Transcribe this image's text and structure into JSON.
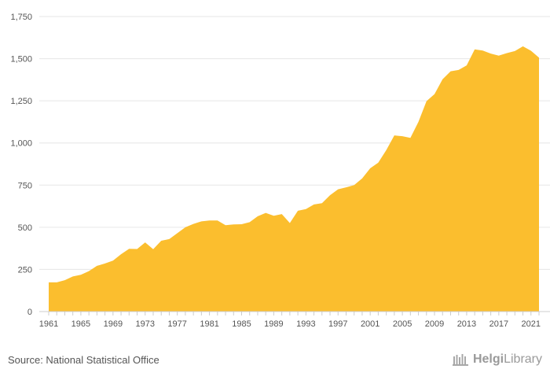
{
  "source_text": "Source: National Statistical Office",
  "logo": {
    "part1": "Helgi",
    "part2": "Library",
    "icon": "helgi-library-logo-icon"
  },
  "colors": {
    "area": "#FBBE2E",
    "grid": "#e6e6e6",
    "axis": "#cccccc",
    "text": "#555555"
  },
  "chart_data": {
    "type": "area",
    "title": "",
    "xlabel": "",
    "ylabel": "",
    "grid": true,
    "legend": "none",
    "ylim": [
      0,
      1750
    ],
    "y_ticks": [
      0,
      250,
      500,
      750,
      1000,
      1250,
      1500,
      1750
    ],
    "y_tick_labels": [
      "0",
      "250",
      "500",
      "750",
      "1,000",
      "1,250",
      "1,500",
      "1,750"
    ],
    "x_tick_labels": [
      "1961",
      "1965",
      "1969",
      "1973",
      "1977",
      "1981",
      "1985",
      "1989",
      "1993",
      "1997",
      "2001",
      "2005",
      "2009",
      "2013",
      "2017",
      "2021"
    ],
    "x": [
      1961,
      1962,
      1963,
      1964,
      1965,
      1966,
      1967,
      1968,
      1969,
      1970,
      1971,
      1972,
      1973,
      1974,
      1975,
      1976,
      1977,
      1978,
      1979,
      1980,
      1981,
      1982,
      1983,
      1984,
      1985,
      1986,
      1987,
      1988,
      1989,
      1990,
      1991,
      1992,
      1993,
      1994,
      1995,
      1996,
      1997,
      1998,
      1999,
      2000,
      2001,
      2002,
      2003,
      2004,
      2005,
      2006,
      2007,
      2008,
      2009,
      2010,
      2011,
      2012,
      2013,
      2014,
      2015,
      2016,
      2017,
      2018,
      2019,
      2020,
      2021,
      2022
    ],
    "series": [
      {
        "values": [
          173,
          173,
          186,
          208,
          218,
          240,
          271,
          285,
          302,
          340,
          372,
          371,
          410,
          370,
          420,
          430,
          465,
          500,
          520,
          535,
          540,
          540,
          512,
          517,
          518,
          530,
          565,
          585,
          568,
          578,
          525,
          598,
          608,
          635,
          643,
          690,
          725,
          737,
          750,
          790,
          850,
          883,
          958,
          1045,
          1040,
          1030,
          1125,
          1248,
          1290,
          1378,
          1425,
          1433,
          1460,
          1555,
          1548,
          1530,
          1518,
          1533,
          1545,
          1573,
          1547,
          1506
        ]
      }
    ]
  }
}
